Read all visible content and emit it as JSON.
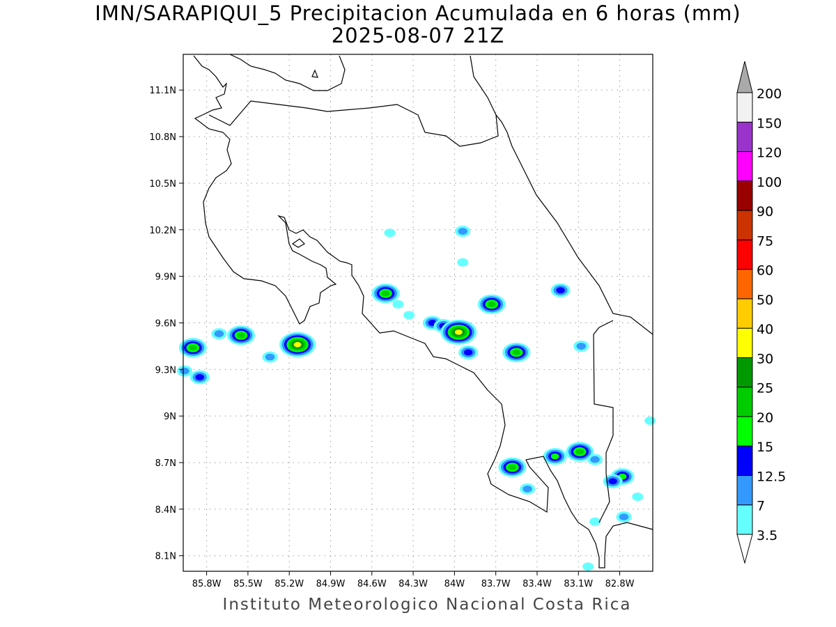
{
  "title": "IMN/SARAPIQUI_5 Precipitacion Acumulada en 6 horas (mm)",
  "subtitle": "2025-08-07 21Z",
  "footer": "Instituto Meteorologico Nacional Costa Rica",
  "map": {
    "lon_range": [
      -85.97,
      -82.56
    ],
    "lat_range": [
      8.0,
      11.33
    ],
    "lon_ticks": [
      {
        "v": -85.8,
        "label": "85.8W"
      },
      {
        "v": -85.5,
        "label": "85.5W"
      },
      {
        "v": -85.2,
        "label": "85.2W"
      },
      {
        "v": -84.9,
        "label": "84.9W"
      },
      {
        "v": -84.6,
        "label": "84.6W"
      },
      {
        "v": -84.3,
        "label": "84.3W"
      },
      {
        "v": -84.0,
        "label": "84W"
      },
      {
        "v": -83.7,
        "label": "83.7W"
      },
      {
        "v": -83.4,
        "label": "83.4W"
      },
      {
        "v": -83.1,
        "label": "83.1W"
      },
      {
        "v": -82.8,
        "label": "82.8W"
      }
    ],
    "lat_ticks": [
      {
        "v": 11.1,
        "label": "11.1N"
      },
      {
        "v": 10.8,
        "label": "10.8N"
      },
      {
        "v": 10.5,
        "label": "10.5N"
      },
      {
        "v": 10.2,
        "label": "10.2N"
      },
      {
        "v": 9.9,
        "label": "9.9N"
      },
      {
        "v": 9.6,
        "label": "9.6N"
      },
      {
        "v": 9.3,
        "label": "9.3N"
      },
      {
        "v": 9.0,
        "label": "9N"
      },
      {
        "v": 8.7,
        "label": "8.7N"
      },
      {
        "v": 8.4,
        "label": "8.4N"
      },
      {
        "v": 8.1,
        "label": "8.1N"
      }
    ],
    "precip_cells": [
      {
        "lon": -85.9,
        "lat": 9.44,
        "peak": 4
      },
      {
        "lon": -85.85,
        "lat": 9.25,
        "peak": 2
      },
      {
        "lon": -85.96,
        "lat": 9.29,
        "peak": 1
      },
      {
        "lon": -85.71,
        "lat": 9.53,
        "peak": 1
      },
      {
        "lon": -85.55,
        "lat": 9.52,
        "peak": 4
      },
      {
        "lon": -85.34,
        "lat": 9.38,
        "peak": 1
      },
      {
        "lon": -85.14,
        "lat": 9.46,
        "peak": 6
      },
      {
        "lon": -84.5,
        "lat": 9.79,
        "peak": 4
      },
      {
        "lon": -84.41,
        "lat": 9.72,
        "peak": 0
      },
      {
        "lon": -84.33,
        "lat": 9.65,
        "peak": 0
      },
      {
        "lon": -84.16,
        "lat": 9.6,
        "peak": 2
      },
      {
        "lon": -84.08,
        "lat": 9.58,
        "peak": 2
      },
      {
        "lon": -83.97,
        "lat": 9.54,
        "peak": 6
      },
      {
        "lon": -83.9,
        "lat": 9.41,
        "peak": 2
      },
      {
        "lon": -83.73,
        "lat": 9.72,
        "peak": 4
      },
      {
        "lon": -83.55,
        "lat": 9.41,
        "peak": 4
      },
      {
        "lon": -83.94,
        "lat": 10.19,
        "peak": 1
      },
      {
        "lon": -83.94,
        "lat": 9.99,
        "peak": 0
      },
      {
        "lon": -84.47,
        "lat": 10.18,
        "peak": 0
      },
      {
        "lon": -83.23,
        "lat": 9.81,
        "peak": 2
      },
      {
        "lon": -83.08,
        "lat": 9.45,
        "peak": 1
      },
      {
        "lon": -83.58,
        "lat": 8.67,
        "peak": 4
      },
      {
        "lon": -83.47,
        "lat": 8.53,
        "peak": 1
      },
      {
        "lon": -83.27,
        "lat": 8.74,
        "peak": 3
      },
      {
        "lon": -83.09,
        "lat": 8.77,
        "peak": 4
      },
      {
        "lon": -82.98,
        "lat": 8.72,
        "peak": 1
      },
      {
        "lon": -82.78,
        "lat": 8.61,
        "peak": 3
      },
      {
        "lon": -82.85,
        "lat": 8.58,
        "peak": 2
      },
      {
        "lon": -82.77,
        "lat": 8.35,
        "peak": 1
      },
      {
        "lon": -82.67,
        "lat": 8.48,
        "peak": 0
      },
      {
        "lon": -82.58,
        "lat": 8.97,
        "peak": 0
      },
      {
        "lon": -82.98,
        "lat": 8.32,
        "peak": 0
      },
      {
        "lon": -83.03,
        "lat": 8.03,
        "peak": 0
      }
    ]
  },
  "colorbar": {
    "labels": [
      "3.5",
      "7",
      "12.5",
      "15",
      "20",
      "25",
      "30",
      "40",
      "50",
      "60",
      "75",
      "90",
      "100",
      "120",
      "150",
      "200"
    ],
    "colors": [
      "#66ffff",
      "#3399ff",
      "#0000ff",
      "#00ff00",
      "#00cc00",
      "#009900",
      "#ffff00",
      "#ffcc00",
      "#ff6600",
      "#ff0000",
      "#cc3300",
      "#990000",
      "#ff00ff",
      "#9933cc",
      "#f2f2f2"
    ],
    "over_color": "#aaaaaa",
    "under_color": "#ffffff"
  }
}
